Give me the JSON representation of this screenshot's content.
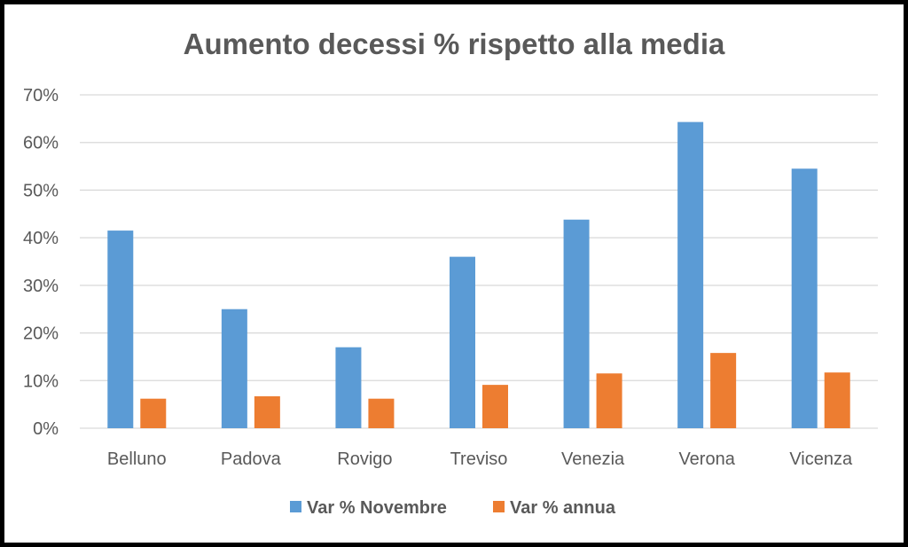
{
  "chart_data": {
    "type": "bar",
    "title": "Aumento decessi % rispetto alla media",
    "xlabel": "",
    "ylabel": "",
    "categories": [
      "Belluno",
      "Padova",
      "Rovigo",
      "Treviso",
      "Venezia",
      "Verona",
      "Vicenza"
    ],
    "series": [
      {
        "name": "Var % Novembre",
        "color": "#5b9bd5",
        "values": [
          41.5,
          25.0,
          17.0,
          36.0,
          43.8,
          64.3,
          54.5
        ]
      },
      {
        "name": "Var % annua",
        "color": "#ed7d31",
        "values": [
          6.2,
          6.7,
          6.2,
          9.1,
          11.5,
          15.8,
          11.7
        ]
      }
    ],
    "ylim": [
      0,
      70
    ],
    "yticks": [
      "0%",
      "10%",
      "20%",
      "30%",
      "40%",
      "50%",
      "60%",
      "70%"
    ],
    "grid": true,
    "legend": "bottom"
  }
}
